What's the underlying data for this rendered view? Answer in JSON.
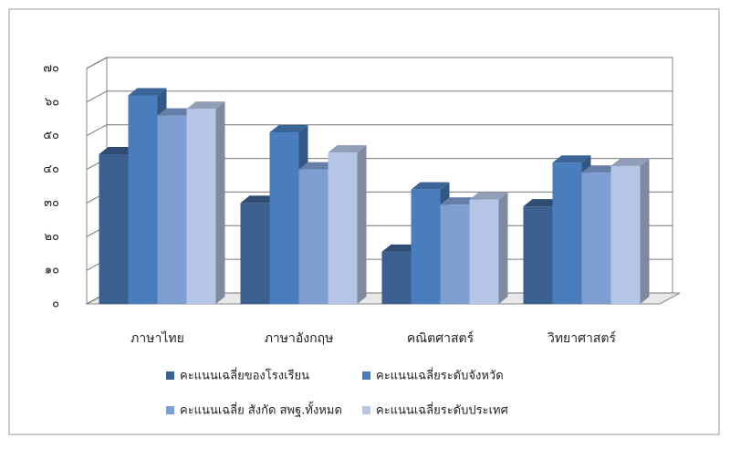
{
  "chart_data": {
    "type": "bar3d",
    "categories": [
      "ภาษาไทย",
      "ภาษาอังกฤษ",
      "คณิตศาสตร์",
      "วิทยาศาสตร์"
    ],
    "series": [
      {
        "name": "คะแนนเฉลี่ยของโรงเรียน",
        "color": "#3b5f8e",
        "values": [
          44.5,
          30,
          15.5,
          29
        ]
      },
      {
        "name": "คะแนนเฉลี่ยระดับจังหวัด",
        "color": "#4a7dbd",
        "values": [
          62,
          51,
          34,
          42
        ]
      },
      {
        "name": "คะแนนเฉลี่ย สังกัด สพฐ.ทั้งหมด",
        "color": "#7f9fd2",
        "values": [
          56,
          40,
          29.5,
          39
        ]
      },
      {
        "name": "คะแนนเฉลี่ยระดับประเทศ",
        "color": "#b5c5e5",
        "values": [
          58,
          45,
          31,
          41
        ]
      }
    ],
    "ylim": [
      0,
      70
    ],
    "yticks": [
      {
        "value": 0,
        "label": "๐"
      },
      {
        "value": 10,
        "label": "๑๐"
      },
      {
        "value": 20,
        "label": "๒๐"
      },
      {
        "value": 30,
        "label": "๓๐"
      },
      {
        "value": 40,
        "label": "๔๐"
      },
      {
        "value": 50,
        "label": "๕๐"
      },
      {
        "value": 60,
        "label": "๖๐"
      },
      {
        "value": 70,
        "label": "๗๐"
      }
    ],
    "grid": true
  }
}
